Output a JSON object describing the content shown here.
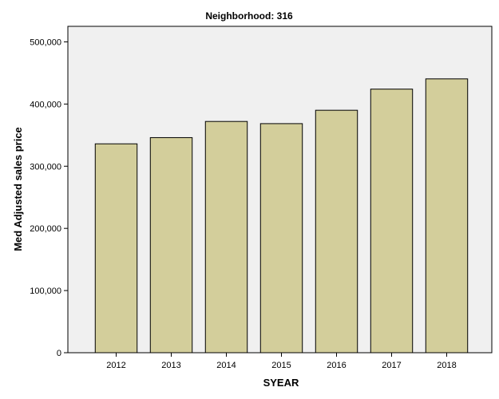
{
  "chart_data": {
    "type": "bar",
    "title": "Neighborhood: 316",
    "xlabel": "SYEAR",
    "ylabel": "Med Adjusted sales price",
    "categories": [
      "2012",
      "2013",
      "2014",
      "2015",
      "2016",
      "2017",
      "2018"
    ],
    "values": [
      336000,
      346000,
      372000,
      368500,
      390000,
      424000,
      440500
    ],
    "ylim": [
      0,
      525000
    ],
    "yticks": [
      0,
      100000,
      200000,
      300000,
      400000,
      500000
    ],
    "ytick_labels": [
      "0",
      "100,000",
      "200,000",
      "300,000",
      "400,000",
      "500,000"
    ],
    "grid": false,
    "legend": "none",
    "colors": {
      "bar_fill": "#d3ce9b",
      "bar_stroke": "#000000",
      "plot_background": "#f0f0f0",
      "page_background": "#ffffff"
    }
  }
}
